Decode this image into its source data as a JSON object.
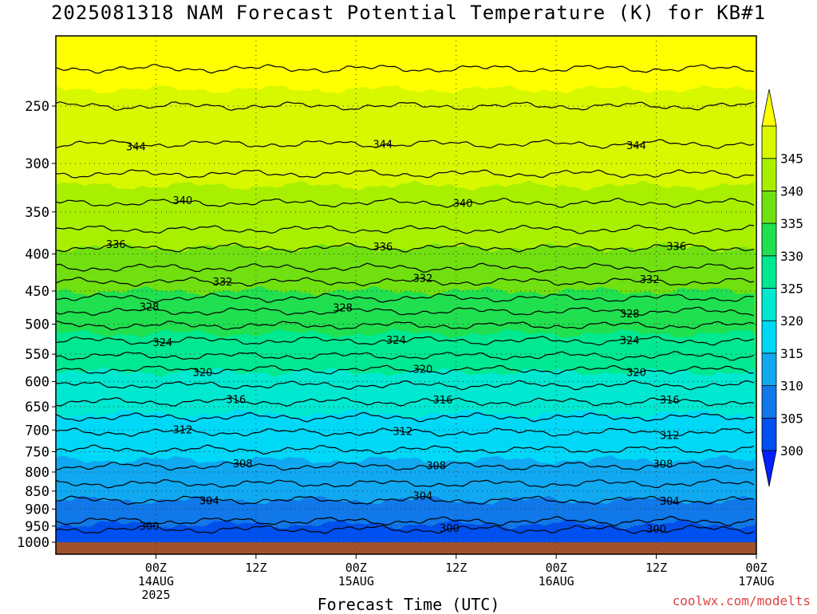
{
  "title": "2025081318 NAM Forecast Potential Temperature (K) for KB#1",
  "credit": "coolwx.com/modelts",
  "chart_data": {
    "type": "heatmap",
    "title": "2025081318 NAM Forecast Potential Temperature (K) for KB#1",
    "xlabel": "Forecast Time (UTC)",
    "ylabel": "",
    "y_axis": {
      "scale": "log",
      "direction": "inverted",
      "ylim": [
        1000,
        200
      ],
      "ticks": [
        250,
        300,
        350,
        400,
        450,
        500,
        550,
        600,
        650,
        700,
        750,
        800,
        850,
        900,
        950,
        1000
      ]
    },
    "x_axis": {
      "xlim_hours": [
        -15,
        90
      ],
      "ticks": [
        {
          "hour": 0,
          "line1": "00Z",
          "line2": "14AUG",
          "line3": "2025"
        },
        {
          "hour": 15,
          "line1": "12Z",
          "line2": "",
          "line3": ""
        },
        {
          "hour": 30,
          "line1": "00Z",
          "line2": "15AUG",
          "line3": ""
        },
        {
          "hour": 45,
          "line1": "12Z",
          "line2": "",
          "line3": ""
        },
        {
          "hour": 60,
          "line1": "00Z",
          "line2": "16AUG",
          "line3": ""
        },
        {
          "hour": 75,
          "line1": "12Z",
          "line2": "",
          "line3": ""
        },
        {
          "hour": 90,
          "line1": "00Z",
          "line2": "17AUG",
          "line3": ""
        }
      ]
    },
    "grid": true,
    "colorbar": {
      "labels": [
        300,
        305,
        310,
        315,
        320,
        325,
        330,
        335,
        340,
        345
      ],
      "colors": [
        "#0020ff",
        "#0050f0",
        "#1078e8",
        "#10a8f0",
        "#00d8f8",
        "#00e8d0",
        "#00e890",
        "#20e050",
        "#70e010",
        "#a8f000",
        "#d8f800",
        "#ffff00"
      ]
    },
    "contours": [
      {
        "value": 300,
        "pressure": 960,
        "labels": [
          [
            -1,
            "300"
          ],
          [
            44,
            "300"
          ],
          [
            75,
            "300"
          ]
        ]
      },
      {
        "value": 302,
        "pressure": 935,
        "labels": []
      },
      {
        "value": 304,
        "pressure": 875,
        "labels": [
          [
            8,
            "304"
          ],
          [
            40,
            "304"
          ],
          [
            77,
            "304"
          ]
        ]
      },
      {
        "value": 306,
        "pressure": 830,
        "labels": []
      },
      {
        "value": 308,
        "pressure": 785,
        "labels": [
          [
            13,
            "308"
          ],
          [
            42,
            "308"
          ],
          [
            76,
            "308"
          ]
        ]
      },
      {
        "value": 310,
        "pressure": 745,
        "labels": []
      },
      {
        "value": 312,
        "pressure": 705,
        "labels": [
          [
            4,
            "312"
          ],
          [
            37,
            "312"
          ],
          [
            77,
            "312"
          ]
        ]
      },
      {
        "value": 314,
        "pressure": 672,
        "labels": []
      },
      {
        "value": 316,
        "pressure": 640,
        "labels": [
          [
            12,
            "316"
          ],
          [
            43,
            "316"
          ],
          [
            77,
            "316"
          ]
        ]
      },
      {
        "value": 318,
        "pressure": 607,
        "labels": []
      },
      {
        "value": 320,
        "pressure": 578,
        "labels": [
          [
            7,
            "320"
          ],
          [
            40,
            "320"
          ],
          [
            72,
            "320"
          ]
        ]
      },
      {
        "value": 322,
        "pressure": 553,
        "labels": []
      },
      {
        "value": 324,
        "pressure": 527,
        "labels": [
          [
            1,
            "324"
          ],
          [
            36,
            "324"
          ],
          [
            71,
            "324"
          ]
        ]
      },
      {
        "value": 326,
        "pressure": 502,
        "labels": []
      },
      {
        "value": 328,
        "pressure": 480,
        "labels": [
          [
            -1,
            "328"
          ],
          [
            28,
            "328"
          ],
          [
            71,
            "328"
          ]
        ]
      },
      {
        "value": 330,
        "pressure": 460,
        "labels": []
      },
      {
        "value": 332,
        "pressure": 437,
        "labels": [
          [
            10,
            "332"
          ],
          [
            40,
            "332"
          ],
          [
            74,
            "332"
          ]
        ]
      },
      {
        "value": 334,
        "pressure": 418,
        "labels": []
      },
      {
        "value": 336,
        "pressure": 392,
        "labels": [
          [
            -6,
            "336"
          ],
          [
            34,
            "336"
          ],
          [
            78,
            "336"
          ]
        ]
      },
      {
        "value": 338,
        "pressure": 370,
        "labels": []
      },
      {
        "value": 340,
        "pressure": 340,
        "labels": [
          [
            4,
            "340"
          ],
          [
            46,
            "340"
          ]
        ]
      },
      {
        "value": 342,
        "pressure": 310,
        "labels": []
      },
      {
        "value": 344,
        "pressure": 282,
        "labels": [
          [
            -3,
            "344"
          ],
          [
            34,
            "344"
          ],
          [
            72,
            "344"
          ]
        ]
      },
      {
        "value": 346,
        "pressure": 250,
        "labels": []
      },
      {
        "value": 348,
        "pressure": 222,
        "labels": []
      }
    ]
  }
}
